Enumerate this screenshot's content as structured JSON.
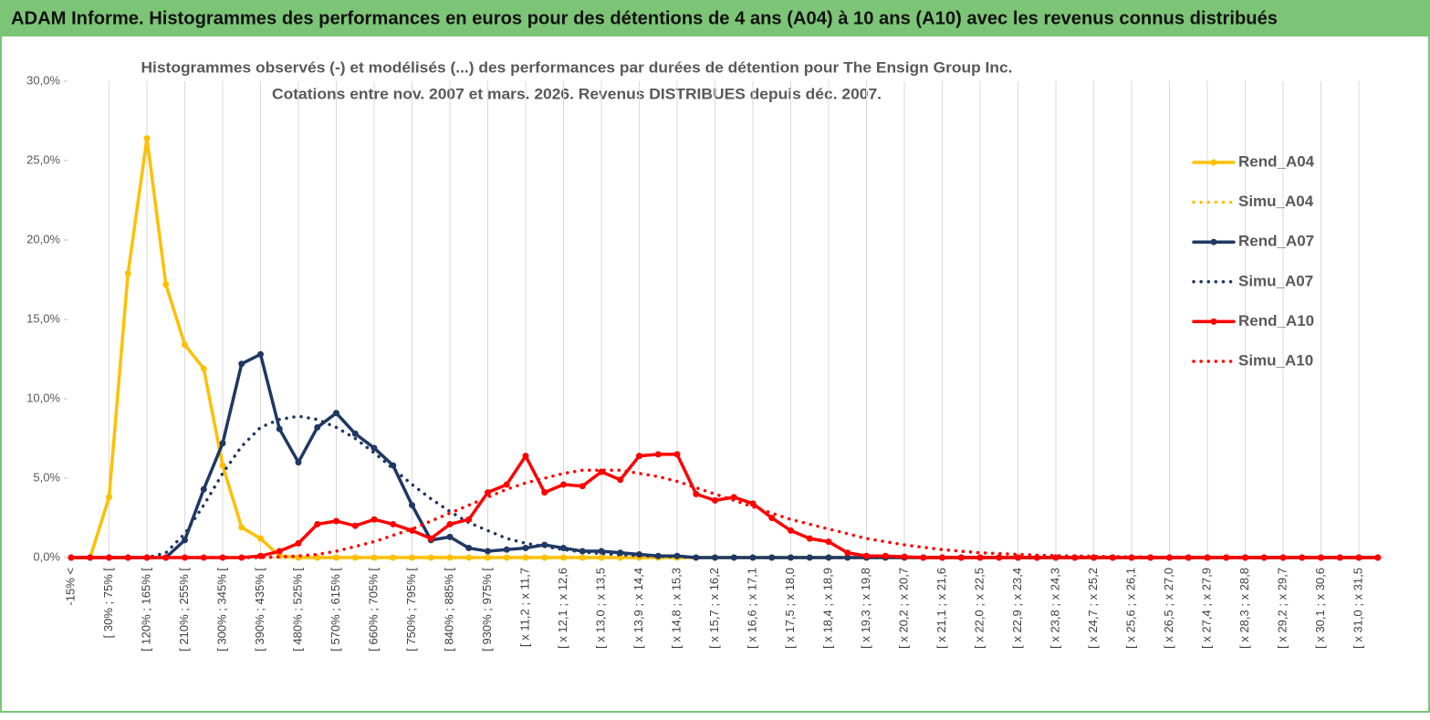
{
  "chart_data": {
    "type": "line",
    "title": "ADAM Informe. Histogrammes des performances en euros pour des détentions de 4 ans (A04) à 10 ans (A10) avec les revenus connus distribués",
    "subtitle": [
      "Histogrammes observés (-) et modélisés (...) des performances par durées de détention pour The Ensign Group Inc.",
      "Cotations entre nov. 2007 et mars. 2026. Revenus DISTRIBUES depuis déc. 2007."
    ],
    "categories": [
      "-15% <",
      null,
      "[ 30% ; 75% [",
      null,
      "[ 120% ; 165% [",
      null,
      "[ 210% ; 255% [",
      null,
      "[ 300% ; 345% [",
      null,
      "[ 390% ; 435% [",
      null,
      "[ 480% ; 525% [",
      null,
      "[ 570% ; 615% [",
      null,
      "[ 660% ; 705% [",
      null,
      "[ 750% ; 795% [",
      null,
      "[ 840% ; 885% [",
      null,
      "[ 930% ; 975% [",
      null,
      "[ x 11,2 ; x 11,7",
      null,
      "[ x 12,1 ; x 12,6",
      null,
      "[ x 13,0 ; x 13,5",
      null,
      "[ x 13,9 ; x 14,4",
      null,
      "[ x 14,8 ; x 15,3",
      null,
      "[ x 15,7 ; x 16,2",
      null,
      "[ x 16,6 ; x 17,1",
      null,
      "[ x 17,5 ; x 18,0",
      null,
      "[ x 18,4 ; x 18,9",
      null,
      "[ x 19,3 ; x 19,8",
      null,
      "[ x 20,2 ; x 20,7",
      null,
      "[ x 21,1 ; x 21,6",
      null,
      "[ x 22,0 ; x 22,5",
      null,
      "[ x 22,9 ; x 23,4",
      null,
      "[ x 23,8 ; x 24,3",
      null,
      "[ x 24,7 ; x 25,2",
      null,
      "[ x 25,6 ; x 26,1",
      null,
      "[ x 26,5 ; x 27,0",
      null,
      "[ x 27,4 ; x 27,9",
      null,
      "[ x 28,3 ; x 28,8",
      null,
      "[ x 29,2 ; x 29,7",
      null,
      "[ x 30,1 ; x 30,6",
      null,
      "[ x 31,0 ; x 31,5",
      null
    ],
    "series": [
      {
        "name": "Rend_A04",
        "color": "#FFC000",
        "style": "solid",
        "markers": true,
        "values": [
          0,
          0,
          3.8,
          17.9,
          26.4,
          17.2,
          13.4,
          11.9,
          5.8,
          1.9,
          1.2,
          0.1,
          0,
          0,
          0,
          0,
          0,
          0,
          0,
          0,
          0,
          0,
          0,
          0,
          0,
          0,
          0,
          0,
          0,
          0,
          0,
          0,
          0,
          0,
          0,
          0,
          0,
          0,
          0,
          0,
          0,
          0,
          0,
          0,
          0,
          0,
          0,
          0,
          0,
          0,
          0,
          0,
          0,
          0,
          0,
          0,
          0,
          0,
          0,
          0,
          0,
          0,
          0,
          0,
          0,
          0,
          0,
          0,
          0,
          0
        ]
      },
      {
        "name": "Simu_A04",
        "color": "#FFC000",
        "style": "dotted",
        "markers": false,
        "values": [
          0,
          0,
          0,
          0,
          0,
          0,
          0,
          0,
          0,
          0,
          0,
          0,
          0,
          0,
          0,
          0,
          0,
          0,
          0,
          0,
          0,
          0,
          0,
          0,
          0,
          0,
          0,
          0,
          0,
          0,
          0,
          0,
          0,
          0,
          0,
          0,
          0,
          0,
          0,
          0,
          0,
          0,
          0,
          0,
          0,
          0,
          0,
          0,
          0,
          0,
          0,
          0,
          0,
          0,
          0,
          0,
          0,
          0,
          0,
          0,
          0,
          0,
          0,
          0,
          0,
          0,
          0,
          0,
          0,
          0
        ]
      },
      {
        "name": "Rend_A07",
        "color": "#1F3864",
        "style": "solid",
        "markers": true,
        "values": [
          0,
          0,
          0,
          0,
          0,
          0,
          1.1,
          4.3,
          7.2,
          12.2,
          12.8,
          8.1,
          6.0,
          8.2,
          9.1,
          7.8,
          6.9,
          5.8,
          3.3,
          1.1,
          1.3,
          0.6,
          0.4,
          0.5,
          0.6,
          0.8,
          0.6,
          0.4,
          0.4,
          0.3,
          0.2,
          0.1,
          0.1,
          0,
          0,
          0,
          0,
          0,
          0,
          0,
          0,
          0,
          0,
          0,
          0,
          0,
          0,
          0,
          0,
          0,
          0,
          0,
          0,
          0,
          0,
          0,
          0,
          0,
          0,
          0,
          0,
          0,
          0,
          0,
          0,
          0,
          0,
          0,
          0,
          0
        ]
      },
      {
        "name": "Simu_A07",
        "color": "#1F3864",
        "style": "dotted",
        "markers": false,
        "values": [
          0,
          0,
          0,
          0,
          0,
          0.3,
          1.5,
          3.3,
          5.3,
          7.0,
          8.2,
          8.7,
          8.9,
          8.7,
          8.2,
          7.5,
          6.6,
          5.6,
          4.6,
          3.7,
          2.9,
          2.2,
          1.7,
          1.2,
          0.9,
          0.7,
          0.5,
          0.35,
          0.25,
          0.18,
          0.12,
          0.08,
          0.05,
          0,
          0,
          0,
          0,
          0,
          0,
          0,
          0,
          0,
          0,
          0,
          0,
          0,
          0,
          0,
          0,
          0,
          0,
          0,
          0,
          0,
          0,
          0,
          0,
          0,
          0,
          0,
          0,
          0,
          0,
          0,
          0,
          0,
          0,
          0,
          0,
          0
        ]
      },
      {
        "name": "Rend_A10",
        "color": "#FF0000",
        "style": "solid",
        "markers": true,
        "values": [
          0,
          0,
          0,
          0,
          0,
          0,
          0,
          0,
          0,
          0,
          0.1,
          0.4,
          0.9,
          2.1,
          2.3,
          2.0,
          2.4,
          2.1,
          1.7,
          1.2,
          2.1,
          2.4,
          4.1,
          4.6,
          6.4,
          4.1,
          4.6,
          4.5,
          5.4,
          4.9,
          6.4,
          6.5,
          6.5,
          4.0,
          3.6,
          3.8,
          3.4,
          2.5,
          1.7,
          1.2,
          1.0,
          0.3,
          0.1,
          0.1,
          0.05,
          0,
          0,
          0,
          0,
          0,
          0,
          0,
          0,
          0,
          0,
          0,
          0,
          0,
          0,
          0,
          0,
          0,
          0,
          0,
          0,
          0,
          0,
          0,
          0,
          0
        ]
      },
      {
        "name": "Simu_A10",
        "color": "#FF0000",
        "style": "dotted",
        "markers": false,
        "values": [
          0,
          0,
          0,
          0,
          0,
          0,
          0,
          0,
          0,
          0,
          0,
          0.05,
          0.1,
          0.2,
          0.4,
          0.7,
          1.0,
          1.4,
          1.8,
          2.3,
          2.8,
          3.3,
          3.8,
          4.3,
          4.7,
          5.0,
          5.3,
          5.5,
          5.5,
          5.5,
          5.3,
          5.1,
          4.8,
          4.4,
          4.0,
          3.6,
          3.2,
          2.8,
          2.4,
          2.1,
          1.8,
          1.5,
          1.2,
          1.0,
          0.8,
          0.65,
          0.5,
          0.4,
          0.3,
          0.25,
          0.2,
          0.15,
          0.12,
          0.1,
          0.08,
          0.06,
          0.05,
          0.03,
          0.03,
          0.02,
          0.02,
          0.02,
          0.01,
          0.01,
          0.01,
          0.01,
          0.01,
          0.01,
          0.01,
          0.01
        ]
      }
    ],
    "ylim": [
      0,
      30
    ],
    "yticks": [
      {
        "value": 0,
        "label": "0,0%"
      },
      {
        "value": 5,
        "label": "5,0%"
      },
      {
        "value": 10,
        "label": "10,0%"
      },
      {
        "value": 15,
        "label": "15,0%"
      },
      {
        "value": 20,
        "label": "20,0%"
      },
      {
        "value": 25,
        "label": "25,0%"
      },
      {
        "value": 30,
        "label": "30,0%"
      }
    ],
    "xgrid": true,
    "legend": "right"
  }
}
